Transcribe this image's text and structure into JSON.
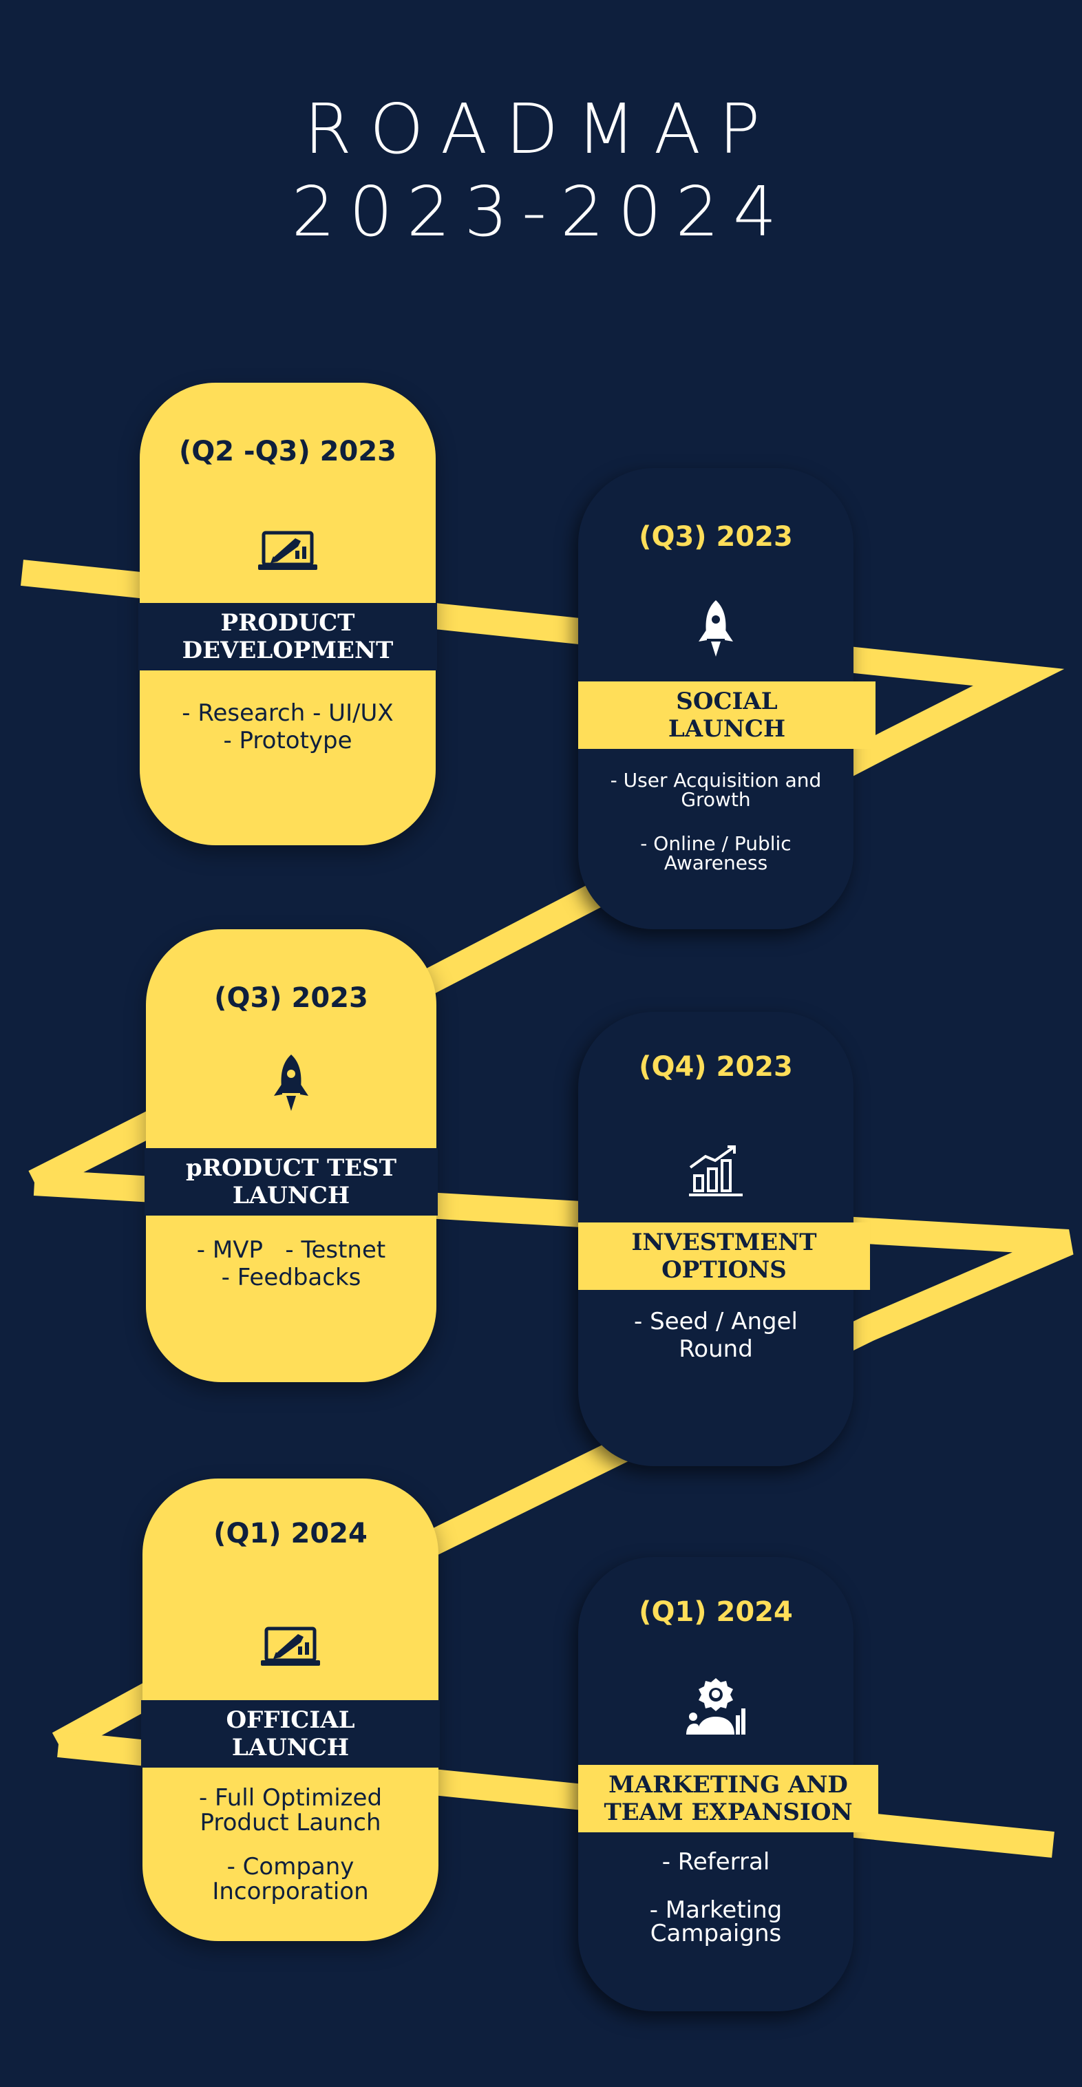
{
  "title": {
    "line1": "ROADMAP",
    "line2": "2023-2024"
  },
  "colors": {
    "background": "#0e1f3d",
    "accent": "#ffde59",
    "text_light": "#ffffff"
  },
  "milestones": [
    {
      "period": "(Q2 -Q3) 2023",
      "icon": "laptop-rocket-icon",
      "title_line1": "PRODUCT",
      "title_line2": "DEVELOPMENT",
      "desc_line1": "- Research - UI/UX",
      "desc_line2": "- Prototype"
    },
    {
      "period": "(Q3) 2023",
      "icon": "rocket-icon",
      "title_line1": "SOCIAL",
      "title_line2": "LAUNCH",
      "desc_line1": "- User Acquisition and",
      "desc_line2": "Growth",
      "desc_line3": "- Online / Public",
      "desc_line4": "Awareness"
    },
    {
      "period": "(Q3) 2023",
      "icon": "rocket-icon",
      "title_line1": "pRODUCT TEST",
      "title_line2": "LAUNCH",
      "desc_line1": "- MVP   - Testnet",
      "desc_line2": "- Feedbacks"
    },
    {
      "period": "(Q4) 2023",
      "icon": "growth-chart-icon",
      "title_line1": "INVESTMENT",
      "title_line2": "OPTIONS",
      "desc_line1": "- Seed / Angel",
      "desc_line2": "Round"
    },
    {
      "period": "(Q1) 2024",
      "icon": "laptop-rocket-icon",
      "title_line1": "OFFICIAL",
      "title_line2": "LAUNCH",
      "desc_line1": "- Full Optimized",
      "desc_line2": "Product Launch",
      "desc_line3": "- Company",
      "desc_line4": "Incorporation"
    },
    {
      "period": "(Q1) 2024",
      "icon": "team-expansion-icon",
      "title_line1": "MARKETING AND",
      "title_line2": "TEAM EXPANSION",
      "desc_line1": "- Referral",
      "desc_line2": "- Marketing",
      "desc_line3": "Campaigns"
    }
  ]
}
